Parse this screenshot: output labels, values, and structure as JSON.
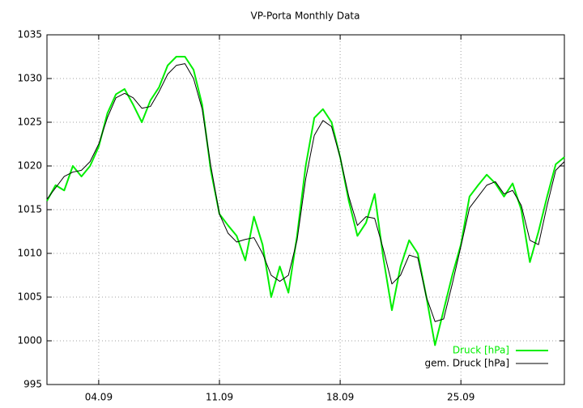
{
  "chart_data": {
    "type": "line",
    "title": "VP-Porta Monthly Data",
    "x": [
      1,
      1.5,
      2,
      2.5,
      3,
      3.5,
      4,
      4.5,
      5,
      5.5,
      6,
      6.5,
      7,
      7.5,
      8,
      8.5,
      9,
      9.5,
      10,
      10.5,
      11,
      11.5,
      12,
      12.5,
      13,
      13.5,
      14,
      14.5,
      15,
      15.5,
      16,
      16.5,
      17,
      17.5,
      18,
      18.5,
      19,
      19.5,
      20,
      20.5,
      21,
      21.5,
      22,
      22.5,
      23,
      23.5,
      24,
      24.5,
      25,
      25.5,
      26,
      26.5,
      27,
      27.5,
      28,
      28.5,
      29,
      29.5,
      30,
      30.5,
      31
    ],
    "series": [
      {
        "name": "Druck [hPa]",
        "color": "#00ee00",
        "values": [
          1016.0,
          1017.8,
          1017.2,
          1020.0,
          1018.8,
          1020.0,
          1022.2,
          1026.0,
          1028.2,
          1028.8,
          1027.0,
          1025.0,
          1027.5,
          1029.0,
          1031.5,
          1032.5,
          1032.5,
          1031.0,
          1027.0,
          1019.5,
          1014.5,
          1013.2,
          1012.0,
          1009.2,
          1014.2,
          1011.0,
          1005.0,
          1008.5,
          1005.5,
          1012.0,
          1020.0,
          1025.5,
          1026.5,
          1025.0,
          1021.0,
          1016.0,
          1012.0,
          1013.5,
          1016.8,
          1009.5,
          1003.5,
          1008.5,
          1011.5,
          1010.0,
          1005.0,
          999.5,
          1003.5,
          1007.5,
          1011.0,
          1016.5,
          1017.8,
          1019.0,
          1018.0,
          1016.5,
          1018.0,
          1015.0,
          1009.0,
          1012.5,
          1016.5,
          1020.2,
          1021.0
        ]
      },
      {
        "name": "gem. Druck [hPa]",
        "color": "#000000",
        "values": [
          1016.2,
          1017.5,
          1018.8,
          1019.3,
          1019.5,
          1020.5,
          1022.5,
          1025.5,
          1027.8,
          1028.3,
          1027.8,
          1026.6,
          1026.8,
          1028.5,
          1030.5,
          1031.5,
          1031.7,
          1030.0,
          1026.5,
          1020.0,
          1014.5,
          1012.3,
          1011.3,
          1011.6,
          1011.8,
          1010.0,
          1007.5,
          1006.8,
          1007.5,
          1011.5,
          1018.5,
          1023.5,
          1025.2,
          1024.5,
          1021.0,
          1016.5,
          1013.2,
          1014.2,
          1014.0,
          1010.5,
          1006.5,
          1007.5,
          1009.8,
          1009.5,
          1005.0,
          1002.2,
          1002.5,
          1006.5,
          1010.8,
          1015.2,
          1016.5,
          1017.8,
          1018.2,
          1016.8,
          1017.2,
          1015.5,
          1011.5,
          1011.0,
          1015.5,
          1019.5,
          1020.5
        ]
      }
    ],
    "xlim": [
      1,
      31
    ],
    "xticks": [
      {
        "value": 4,
        "label": "04.09"
      },
      {
        "value": 11,
        "label": "11.09"
      },
      {
        "value": 18,
        "label": "18.09"
      },
      {
        "value": 25,
        "label": "25.09"
      }
    ],
    "ylim": [
      995,
      1035
    ],
    "yticks": [
      995,
      1000,
      1005,
      1010,
      1015,
      1020,
      1025,
      1030,
      1035
    ],
    "grid": true,
    "legend": "bottom-right"
  }
}
